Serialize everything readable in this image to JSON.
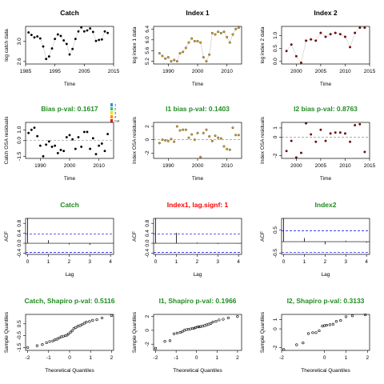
{
  "colors": {
    "title_black": "#000000",
    "title_green": "#228B22",
    "title_red": "#FF0000",
    "zero_line": "#808080",
    "ci_line": "#0000FF",
    "pt_black": "#000000",
    "pt_gold": "#DAA520",
    "pt_maroon": "#8B0000"
  },
  "legend_keys": [
    "1",
    "2",
    "3",
    "4",
    "Cat"
  ],
  "chart_data": [
    {
      "id": "p1",
      "type": "line",
      "title": "Catch",
      "title_color": "title_black",
      "xlabel": "Time",
      "ylabel": "log catch data",
      "xlim": [
        1985,
        2015
      ],
      "ylim": [
        2.55,
        3.3
      ],
      "xticks": [
        1985,
        1995,
        2005,
        2015
      ],
      "yticks": [
        2.6,
        3.0
      ],
      "pt_color": "pt_black",
      "pch": "filled",
      "connect": true,
      "x": [
        1986,
        1987,
        1988,
        1989,
        1990,
        1991,
        1992,
        1993,
        1994,
        1995,
        1996,
        1997,
        1998,
        1999,
        2000,
        2001,
        2002,
        2003,
        2004,
        2005,
        2006,
        2007,
        2008,
        2009,
        2010,
        2011,
        2012,
        2013
      ],
      "y": [
        3.18,
        3.13,
        3.08,
        3.1,
        3.06,
        2.9,
        2.65,
        2.7,
        2.86,
        3.05,
        3.14,
        3.11,
        3.02,
        2.95,
        2.74,
        2.85,
        3.05,
        3.2,
        3.28,
        3.2,
        3.22,
        3.26,
        3.19,
        3.01,
        3.03,
        3.04,
        3.2,
        3.17
      ]
    },
    {
      "id": "p2",
      "type": "line",
      "title": "Index 1",
      "title_color": "title_black",
      "xlabel": "Time",
      "ylabel": "log index 1 data",
      "xlim": [
        1985,
        2015
      ],
      "ylim": [
        5.1,
        6.5
      ],
      "xticks": [
        1990,
        2000,
        2010
      ],
      "yticks": [
        5.2,
        5.6,
        6.0,
        6.4
      ],
      "pt_color": "pt_gold",
      "pch": "filled",
      "connect": true,
      "x": [
        1987,
        1988,
        1989,
        1990,
        1991,
        1992,
        1993,
        1994,
        1995,
        1996,
        1997,
        1998,
        1999,
        2000,
        2001,
        2002,
        2003,
        2004,
        2005,
        2006,
        2007,
        2008,
        2009,
        2010,
        2011,
        2012,
        2013,
        2014
      ],
      "y": [
        5.5,
        5.4,
        5.3,
        5.35,
        5.2,
        5.25,
        5.2,
        5.5,
        5.55,
        5.7,
        5.9,
        6.05,
        5.95,
        5.95,
        5.9,
        5.35,
        5.2,
        5.45,
        6.25,
        6.2,
        6.3,
        6.25,
        6.3,
        6.1,
        5.9,
        6.2,
        6.4,
        6.45
      ]
    },
    {
      "id": "p3",
      "type": "line",
      "title": "Index 2",
      "title_color": "title_black",
      "xlabel": "Time",
      "ylabel": "log index 2 data",
      "xlim": [
        1997,
        2015
      ],
      "ylim": [
        -0.1,
        1.35
      ],
      "xticks": [
        2000,
        2005,
        2010,
        2015
      ],
      "yticks": [
        0.0,
        0.5,
        1.0
      ],
      "pt_color": "pt_maroon",
      "pch": "filled",
      "connect": true,
      "x": [
        1998,
        1999,
        2000,
        2001,
        2002,
        2003,
        2004,
        2005,
        2006,
        2007,
        2008,
        2009,
        2010,
        2011,
        2012,
        2013,
        2014
      ],
      "y": [
        0.4,
        0.65,
        0.2,
        -0.05,
        0.8,
        0.85,
        0.8,
        1.1,
        0.95,
        1.05,
        1.1,
        1.05,
        0.95,
        0.55,
        1.1,
        1.3,
        1.3
      ]
    },
    {
      "id": "p4",
      "type": "scatter",
      "title": "Bias p-val: 0.1617",
      "title_color": "title_green",
      "xlabel": "Time",
      "ylabel": "Catch OSA residuals",
      "xlim": [
        1985,
        2015
      ],
      "ylim": [
        -1.7,
        1.7
      ],
      "xticks": [
        1990,
        2000,
        2010
      ],
      "yticks": [
        -1.5,
        0.0,
        1.0
      ],
      "pt_color": "pt_black",
      "pch": "filled",
      "zero_line": true,
      "x": [
        1986,
        1987,
        1988,
        1989,
        1990,
        1991,
        1992,
        1993,
        1994,
        1995,
        1996,
        1997,
        1998,
        1999,
        2000,
        2001,
        2002,
        2003,
        2004,
        2005,
        2006,
        2007,
        2008,
        2009,
        2010,
        2011,
        2012,
        2013
      ],
      "y": [
        0.7,
        1.0,
        1.2,
        0.4,
        -0.5,
        -1.5,
        -0.4,
        -0.1,
        -0.6,
        -0.5,
        -1.2,
        -0.9,
        -1.0,
        0.3,
        0.5,
        0.1,
        -0.8,
        0.3,
        -0.6,
        0.8,
        0.8,
        -0.8,
        0.2,
        -1.3,
        -0.5,
        -0.3,
        -1.0,
        0.6
      ]
    },
    {
      "id": "p5",
      "type": "scatter",
      "title": "I1 bias p-val: 0.1403",
      "title_color": "title_green",
      "xlabel": "Time",
      "ylabel": "Index OSA residuals",
      "xlim": [
        1985,
        2015
      ],
      "ylim": [
        -2.8,
        2.6
      ],
      "xticks": [
        1990,
        2000,
        2010
      ],
      "yticks": [
        -2,
        0,
        2
      ],
      "pt_color": "pt_gold",
      "pch": "filled",
      "zero_line": true,
      "x": [
        1987,
        1988,
        1989,
        1990,
        1991,
        1992,
        1993,
        1994,
        1995,
        1996,
        1997,
        1998,
        1999,
        2000,
        2001,
        2002,
        2003,
        2004,
        2005,
        2006,
        2007,
        2008,
        2009,
        2010,
        2011,
        2012,
        2013,
        2014
      ],
      "y": [
        -0.5,
        0.0,
        -0.1,
        -0.2,
        0.1,
        -0.3,
        2.0,
        1.4,
        1.5,
        1.5,
        0.3,
        0.8,
        0.0,
        1.0,
        -2.6,
        1.0,
        1.5,
        0.5,
        -0.2,
        0.6,
        0.3,
        0.2,
        -1.0,
        -1.4,
        -1.5,
        1.8,
        0.7,
        0.7
      ]
    },
    {
      "id": "p6",
      "type": "scatter",
      "title": "I2 bias p-val: 0.8763",
      "title_color": "title_green",
      "xlabel": "Time",
      "ylabel": "Index OSA residuals",
      "xlim": [
        1997,
        2015
      ],
      "ylim": [
        -2.3,
        1.6
      ],
      "xticks": [
        2000,
        2005,
        2010,
        2015
      ],
      "yticks": [
        -2,
        0,
        1
      ],
      "pt_color": "pt_maroon",
      "pch": "filled",
      "zero_line": true,
      "x": [
        1998,
        1999,
        2000,
        2001,
        2002,
        2003,
        2004,
        2005,
        2006,
        2007,
        2008,
        2009,
        2010,
        2011,
        2012,
        2013,
        2014
      ],
      "y": [
        -1.5,
        -0.4,
        -2.2,
        -1.7,
        1.5,
        0.3,
        -0.5,
        0.8,
        -0.4,
        0.4,
        0.5,
        0.5,
        0.4,
        -0.5,
        1.3,
        1.4,
        -1.6
      ]
    },
    {
      "id": "p7",
      "type": "acf",
      "title": "Catch",
      "title_color": "title_green",
      "xlabel": "Lag",
      "ylabel": "ACF",
      "xlim": [
        -0.1,
        4.15
      ],
      "ylim": [
        -0.45,
        1.0
      ],
      "xticks": [
        0,
        1,
        2,
        3,
        4
      ],
      "yticks": [
        -0.4,
        0.0,
        0.4,
        0.8
      ],
      "ci": 0.37,
      "lags": [
        0,
        1,
        2,
        3,
        4
      ],
      "values": [
        1.0,
        0.12,
        -0.05,
        -0.07,
        0.01
      ]
    },
    {
      "id": "p8",
      "type": "acf",
      "title": "Index1, lag.signf: 1",
      "title_color": "title_red",
      "xlabel": "Lag",
      "ylabel": "ACF",
      "xlim": [
        -0.1,
        4.15
      ],
      "ylim": [
        -0.45,
        1.0
      ],
      "xticks": [
        0,
        1,
        2,
        3,
        4
      ],
      "yticks": [
        -0.4,
        0.0,
        0.4,
        0.8
      ],
      "ci": 0.37,
      "lags": [
        0,
        1,
        2,
        3,
        4
      ],
      "values": [
        1.0,
        0.42,
        0.03,
        -0.03,
        -0.02
      ]
    },
    {
      "id": "p9",
      "type": "acf",
      "title": "Index2",
      "title_color": "title_green",
      "xlabel": "Lag",
      "ylabel": "ACF",
      "xlim": [
        -0.1,
        4.15
      ],
      "ylim": [
        -0.55,
        1.0
      ],
      "xticks": [
        0,
        1,
        2,
        3,
        4
      ],
      "yticks": [
        -0.5,
        0.5
      ],
      "ci": 0.47,
      "lags": [
        0,
        1,
        2,
        3,
        4
      ],
      "values": [
        1.0,
        0.15,
        -0.12,
        0.04,
        -0.05
      ]
    },
    {
      "id": "p10",
      "type": "scatter",
      "title": "Catch, Shapiro p-val: 0.5116",
      "title_color": "title_green",
      "xlabel": "Theoretical Quantiles",
      "ylabel": "Sample Quantiles",
      "xlim": [
        -2.1,
        2.1
      ],
      "ylim": [
        -1.75,
        1.3
      ],
      "xticks": [
        -2,
        -1,
        0,
        1,
        2
      ],
      "yticks": [
        -1.5,
        -0.5,
        0.5
      ],
      "pt_color": "pt_black",
      "pch": "open",
      "x": [
        -2.0,
        -1.55,
        -1.3,
        -1.1,
        -0.95,
        -0.8,
        -0.7,
        -0.6,
        -0.5,
        -0.4,
        -0.3,
        -0.2,
        -0.12,
        -0.05,
        0.05,
        0.12,
        0.2,
        0.3,
        0.4,
        0.5,
        0.6,
        0.7,
        0.8,
        0.95,
        1.1,
        1.3,
        1.55,
        2.0
      ],
      "y": [
        -1.5,
        -1.35,
        -1.25,
        -1.1,
        -1.0,
        -0.95,
        -0.85,
        -0.8,
        -0.7,
        -0.6,
        -0.55,
        -0.5,
        -0.45,
        -0.35,
        -0.2,
        -0.1,
        0.1,
        0.2,
        0.3,
        0.35,
        0.45,
        0.55,
        0.65,
        0.7,
        0.8,
        0.85,
        1.0,
        1.2
      ]
    },
    {
      "id": "p11",
      "type": "scatter",
      "title": "I1, Shapiro p-val: 0.1966",
      "title_color": "title_green",
      "xlabel": "Theoretical Quantiles",
      "ylabel": "Sample Quantiles",
      "xlim": [
        -2.1,
        2.2
      ],
      "ylim": [
        -2.9,
        2.3
      ],
      "xticks": [
        -2,
        -1,
        0,
        1,
        2
      ],
      "yticks": [
        -2,
        0,
        2
      ],
      "pt_color": "pt_black",
      "pch": "open",
      "x": [
        -2.0,
        -1.55,
        -1.3,
        -1.1,
        -0.95,
        -0.8,
        -0.7,
        -0.6,
        -0.5,
        -0.4,
        -0.3,
        -0.2,
        -0.12,
        -0.05,
        0.05,
        0.12,
        0.2,
        0.3,
        0.4,
        0.5,
        0.6,
        0.7,
        0.8,
        0.95,
        1.1,
        1.3,
        1.55,
        2.0
      ],
      "y": [
        -2.6,
        -1.6,
        -1.5,
        -0.5,
        -0.4,
        -0.3,
        -0.2,
        0.0,
        0.1,
        0.15,
        0.2,
        0.3,
        0.3,
        0.4,
        0.5,
        0.5,
        0.55,
        0.6,
        0.7,
        0.8,
        0.9,
        1.0,
        1.2,
        1.3,
        1.5,
        1.6,
        1.8,
        2.0
      ]
    },
    {
      "id": "p12",
      "type": "scatter",
      "title": "I2, Shapiro p-val: 0.3133",
      "title_color": "title_green",
      "xlabel": "Theoretical Quantiles",
      "ylabel": "Sample Quantiles",
      "xlim": [
        -2.0,
        2.1
      ],
      "ylim": [
        -2.3,
        1.55
      ],
      "xticks": [
        -2,
        0,
        1,
        2
      ],
      "yticks": [
        -2,
        0,
        1
      ],
      "pt_color": "pt_black",
      "pch": "open",
      "x": [
        -1.9,
        -1.3,
        -1.0,
        -0.75,
        -0.55,
        -0.4,
        -0.25,
        -0.1,
        0.0,
        0.1,
        0.25,
        0.4,
        0.55,
        0.75,
        1.0,
        1.3,
        1.9
      ],
      "y": [
        -2.2,
        -1.7,
        -1.5,
        -0.5,
        -0.4,
        -0.4,
        -0.2,
        0.3,
        0.35,
        0.4,
        0.45,
        0.5,
        0.8,
        0.9,
        1.3,
        1.4,
        1.5
      ]
    }
  ]
}
